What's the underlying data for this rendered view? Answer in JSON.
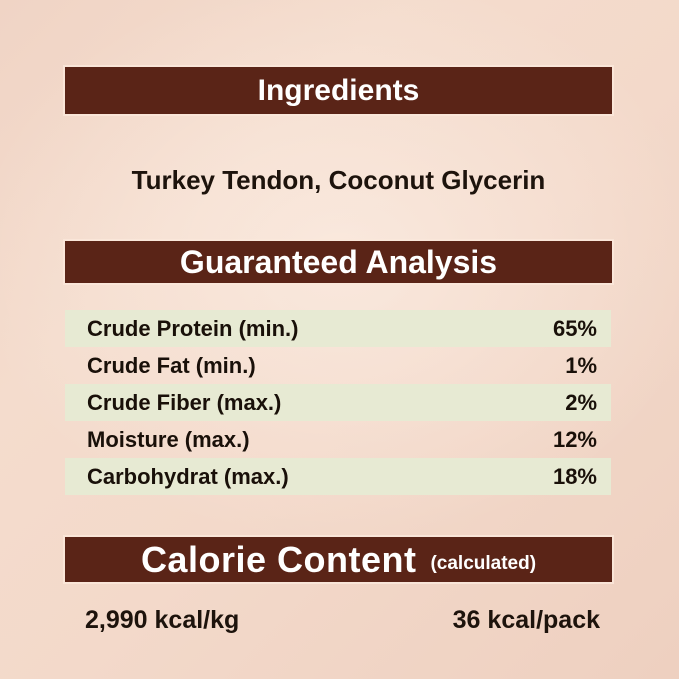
{
  "page": {
    "background_color": "#f2d8ca",
    "accent_brown": "#5a2417",
    "row_green": "#e7ead3",
    "text_dark": "#1d130c"
  },
  "ingredients": {
    "header": "Ingredients",
    "content": "Turkey Tendon, Coconut Glycerin"
  },
  "guaranteed_analysis": {
    "header": "Guaranteed Analysis",
    "rows": [
      {
        "label": "Crude Protein (min.)",
        "value": "65%"
      },
      {
        "label": "Crude Fat (min.)",
        "value": "1%"
      },
      {
        "label": "Crude Fiber (max.)",
        "value": "2%"
      },
      {
        "label": "Moisture (max.)",
        "value": "12%"
      },
      {
        "label": "Carbohydrat (max.)",
        "value": "18%"
      }
    ]
  },
  "calorie_content": {
    "header": "Calorie Content",
    "header_note": "(calculated)",
    "per_kg": "2,990 kcal/kg",
    "per_pack": "36 kcal/pack"
  }
}
